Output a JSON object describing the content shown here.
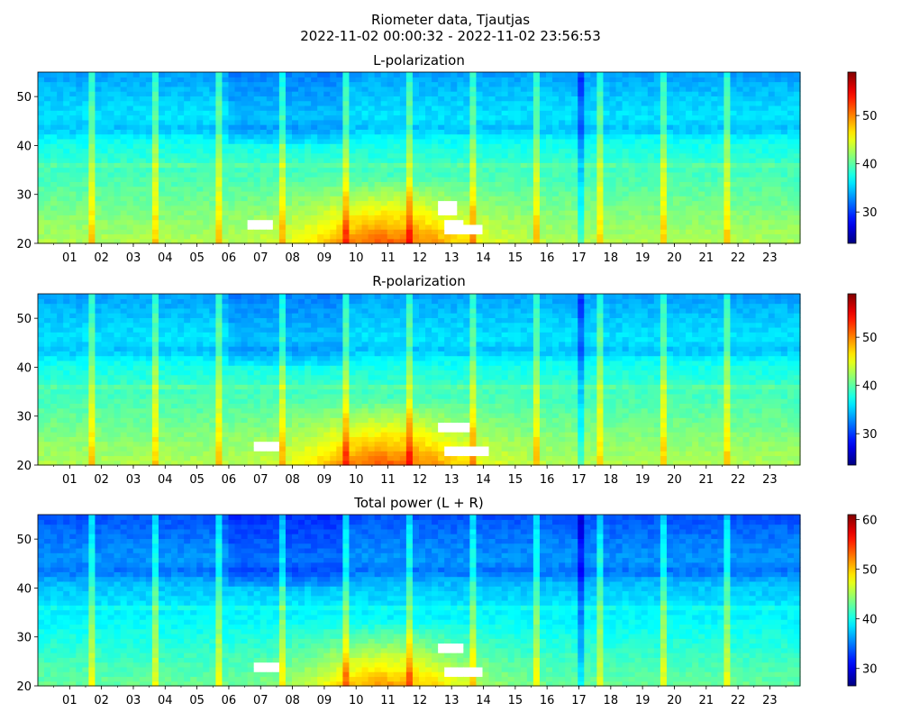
{
  "figure": {
    "title_line1": "Riometer data, Tjautjas",
    "title_line2": "2022-11-02 00:00:32 - 2022-11-02 23:56:53"
  },
  "colormap": "jet",
  "chart_data": [
    {
      "type": "heatmap",
      "title": "L-polarization",
      "xlabel": "",
      "ylabel": "",
      "x_range_hours": [
        0.0,
        23.95
      ],
      "x_tick_labels": [
        "01",
        "02",
        "03",
        "04",
        "05",
        "06",
        "07",
        "08",
        "09",
        "10",
        "11",
        "12",
        "13",
        "14",
        "15",
        "16",
        "17",
        "18",
        "19",
        "20",
        "21",
        "22",
        "23"
      ],
      "ylim": [
        20,
        55
      ],
      "y_ticks": [
        20,
        30,
        40,
        50
      ],
      "colorbar": {
        "range": [
          23.5,
          59
        ],
        "ticks": [
          30,
          40,
          50
        ]
      },
      "saturated_color": "#ffffff"
    },
    {
      "type": "heatmap",
      "title": "R-polarization",
      "xlabel": "",
      "ylabel": "",
      "x_range_hours": [
        0.0,
        23.95
      ],
      "x_tick_labels": [
        "01",
        "02",
        "03",
        "04",
        "05",
        "06",
        "07",
        "08",
        "09",
        "10",
        "11",
        "12",
        "13",
        "14",
        "15",
        "16",
        "17",
        "18",
        "19",
        "20",
        "21",
        "22",
        "23"
      ],
      "ylim": [
        20,
        55
      ],
      "y_ticks": [
        20,
        30,
        40,
        50
      ],
      "colorbar": {
        "range": [
          23.5,
          59
        ],
        "ticks": [
          30,
          40,
          50
        ]
      },
      "saturated_color": "#ffffff"
    },
    {
      "type": "heatmap",
      "title": "Total power (L + R)",
      "xlabel": "",
      "ylabel": "",
      "x_range_hours": [
        0.0,
        23.95
      ],
      "x_tick_labels": [
        "01",
        "02",
        "03",
        "04",
        "05",
        "06",
        "07",
        "08",
        "09",
        "10",
        "11",
        "12",
        "13",
        "14",
        "15",
        "16",
        "17",
        "18",
        "19",
        "20",
        "21",
        "22",
        "23"
      ],
      "ylim": [
        20,
        55
      ],
      "y_ticks": [
        20,
        30,
        40,
        50
      ],
      "colorbar": {
        "range": [
          26.5,
          61
        ],
        "ticks": [
          30,
          40,
          50,
          60
        ]
      },
      "saturated_color": "#ffffff"
    }
  ]
}
